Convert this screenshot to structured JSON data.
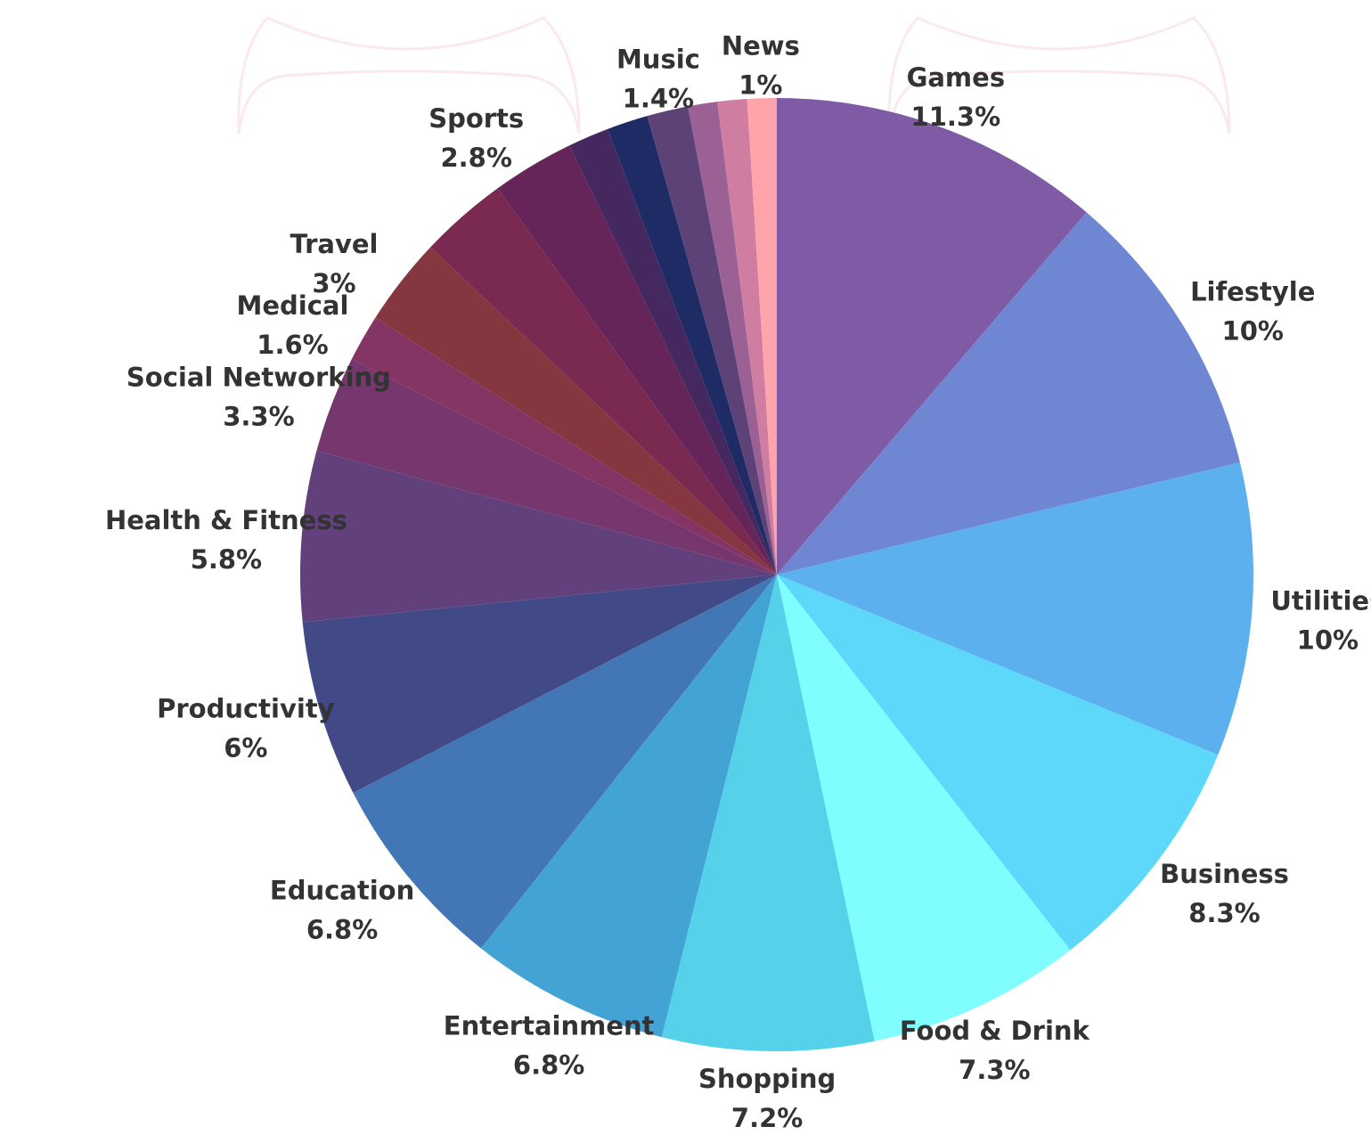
{
  "chart_data": {
    "type": "pie",
    "title": "",
    "start_angle_deg": 0,
    "direction": "clockwise",
    "legend": "none",
    "slices": [
      {
        "label": "Games",
        "value": 11.3,
        "display": "11.3%",
        "color": "#7f5ba6"
      },
      {
        "label": "Lifestyle",
        "value": 10,
        "display": "10%",
        "color": "#6f86d2"
      },
      {
        "label": "Utilities",
        "value": 10,
        "display": "10%",
        "color": "#5cb0ee"
      },
      {
        "label": "Business",
        "value": 8.3,
        "display": "8.3%",
        "color": "#5dd8fb"
      },
      {
        "label": "Food & Drink",
        "value": 7.3,
        "display": "7.3%",
        "color": "#80feff"
      },
      {
        "label": "Shopping",
        "value": 7.2,
        "display": "7.2%",
        "color": "#55d1e9"
      },
      {
        "label": "Entertainment",
        "value": 6.8,
        "display": "6.8%",
        "color": "#42a3d4"
      },
      {
        "label": "Education",
        "value": 6.8,
        "display": "6.8%",
        "color": "#4376b4"
      },
      {
        "label": "Productivity",
        "value": 6,
        "display": "6%",
        "color": "#414a87"
      },
      {
        "label": "Health & Fitness",
        "value": 5.8,
        "display": "5.8%",
        "color": "#62407c"
      },
      {
        "label": "Social Networking",
        "value": 3.3,
        "display": "3.3%",
        "color": "#76366e"
      },
      {
        "label": "Medical",
        "value": 1.6,
        "display": "1.6%",
        "color": "#853564"
      },
      {
        "label": "Travel",
        "value": 3,
        "display": "3%",
        "color": "#86363f"
      },
      {
        "label": "",
        "value": 3,
        "display": "",
        "color": "#7a2950"
      },
      {
        "label": "Sports",
        "value": 2.8,
        "display": "2.8%",
        "color": "#652559"
      },
      {
        "label": "",
        "value": 1.4,
        "display": "",
        "color": "#452860"
      },
      {
        "label": "",
        "value": 1.4,
        "display": "",
        "color": "#1e2b65"
      },
      {
        "label": "Music",
        "value": 1.4,
        "display": "1.4%",
        "color": "#5d4278"
      },
      {
        "label": "",
        "value": 1.0,
        "display": "",
        "color": "#9b6195"
      },
      {
        "label": "",
        "value": 1.0,
        "display": "",
        "color": "#cf7da1"
      },
      {
        "label": "News",
        "value": 1,
        "display": "1%",
        "color": "#ffa4ab"
      }
    ]
  }
}
